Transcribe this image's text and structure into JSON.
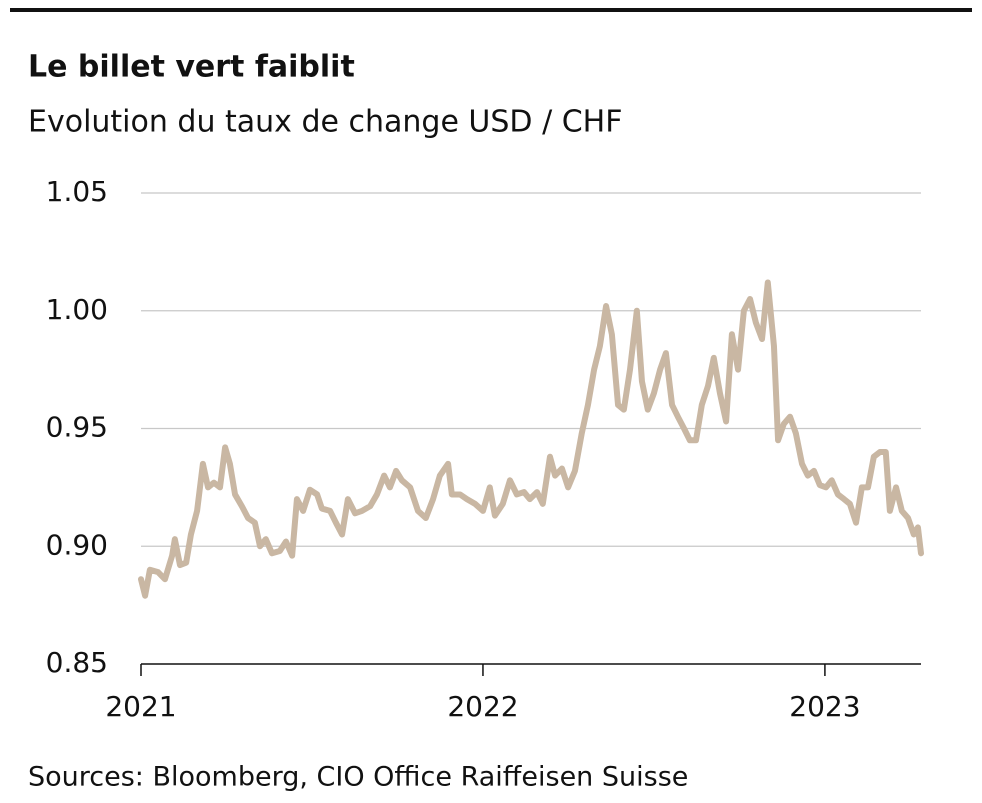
{
  "chart_data": {
    "type": "line",
    "title": "Le billet vert faiblit",
    "subtitle": "Evolution du taux de change USD / CHF",
    "source": "Sources: Bloomberg, CIO Office Raiffeisen Suisse",
    "xlim": [
      2021,
      2023.281
    ],
    "xticks": [
      2021,
      2022,
      2023
    ],
    "ylim": [
      0.85,
      1.05
    ],
    "yticks": [
      0.85,
      {
        "value": 0.9,
        "label": "0.90"
      },
      0.95,
      {
        "value": 1,
        "label": "1.00"
      },
      1.05
    ],
    "grid": true,
    "series": [
      {
        "color": "#c9b7a3",
        "x": [
          2021.0,
          2021.012,
          2021.026,
          2021.05,
          2021.07,
          2021.091,
          2021.099,
          2021.114,
          2021.132,
          2021.146,
          2021.164,
          2021.181,
          2021.196,
          2021.213,
          2021.231,
          2021.246,
          2021.26,
          2021.275,
          2021.295,
          2021.313,
          2021.333,
          2021.348,
          2021.365,
          2021.383,
          2021.406,
          2021.424,
          2021.442,
          2021.456,
          2021.474,
          2021.494,
          2021.515,
          2021.529,
          2021.553,
          2021.57,
          2021.588,
          2021.605,
          2021.626,
          2021.646,
          2021.67,
          2021.69,
          2021.711,
          2021.728,
          2021.746,
          2021.763,
          2021.787,
          2021.81,
          2021.833,
          2021.854,
          2021.874,
          2021.898,
          2021.909,
          2021.933,
          2021.953,
          2021.977,
          2022.0,
          2022.02,
          2022.035,
          2022.058,
          2022.079,
          2022.099,
          2022.12,
          2022.137,
          2022.158,
          2022.175,
          2022.196,
          2022.211,
          2022.231,
          2022.249,
          2022.269,
          2022.289,
          2022.307,
          2022.325,
          2022.342,
          2022.36,
          2022.377,
          2022.395,
          2022.412,
          2022.43,
          2022.45,
          2022.465,
          2022.482,
          2022.5,
          2022.518,
          2022.535,
          2022.553,
          2022.57,
          2022.588,
          2022.605,
          2022.623,
          2022.64,
          2022.658,
          2022.675,
          2022.693,
          2022.711,
          2022.728,
          2022.746,
          2022.763,
          2022.781,
          2022.798,
          2022.816,
          2022.833,
          2022.851,
          2022.863,
          2022.88,
          2022.898,
          2022.915,
          2022.933,
          2022.95,
          2022.968,
          2022.985,
          2023.003,
          2023.02,
          2023.038,
          2023.056,
          2023.073,
          2023.091,
          2023.108,
          2023.126,
          2023.143,
          2023.161,
          2023.178,
          2023.19,
          2023.208,
          2023.225,
          2023.243,
          2023.26,
          2023.272,
          2023.281
        ],
        "values": [
          0.886,
          0.879,
          0.89,
          0.889,
          0.886,
          0.896,
          0.903,
          0.892,
          0.893,
          0.905,
          0.915,
          0.935,
          0.925,
          0.927,
          0.925,
          0.942,
          0.935,
          0.922,
          0.917,
          0.912,
          0.91,
          0.9,
          0.903,
          0.897,
          0.898,
          0.902,
          0.896,
          0.92,
          0.915,
          0.924,
          0.922,
          0.916,
          0.915,
          0.91,
          0.905,
          0.92,
          0.914,
          0.915,
          0.917,
          0.922,
          0.93,
          0.925,
          0.932,
          0.928,
          0.925,
          0.915,
          0.912,
          0.92,
          0.93,
          0.935,
          0.922,
          0.922,
          0.92,
          0.918,
          0.915,
          0.925,
          0.913,
          0.918,
          0.928,
          0.922,
          0.923,
          0.92,
          0.923,
          0.918,
          0.938,
          0.93,
          0.933,
          0.925,
          0.932,
          0.948,
          0.96,
          0.975,
          0.985,
          1.002,
          0.99,
          0.96,
          0.958,
          0.975,
          1.0,
          0.97,
          0.958,
          0.965,
          0.975,
          0.982,
          0.96,
          0.955,
          0.95,
          0.945,
          0.945,
          0.96,
          0.968,
          0.98,
          0.965,
          0.953,
          0.99,
          0.975,
          1.0,
          1.005,
          0.995,
          0.988,
          1.012,
          0.985,
          0.945,
          0.952,
          0.955,
          0.948,
          0.935,
          0.93,
          0.932,
          0.926,
          0.925,
          0.928,
          0.922,
          0.92,
          0.918,
          0.91,
          0.925,
          0.925,
          0.938,
          0.94,
          0.94,
          0.915,
          0.925,
          0.915,
          0.912,
          0.905,
          0.908,
          0.897
        ]
      }
    ]
  }
}
